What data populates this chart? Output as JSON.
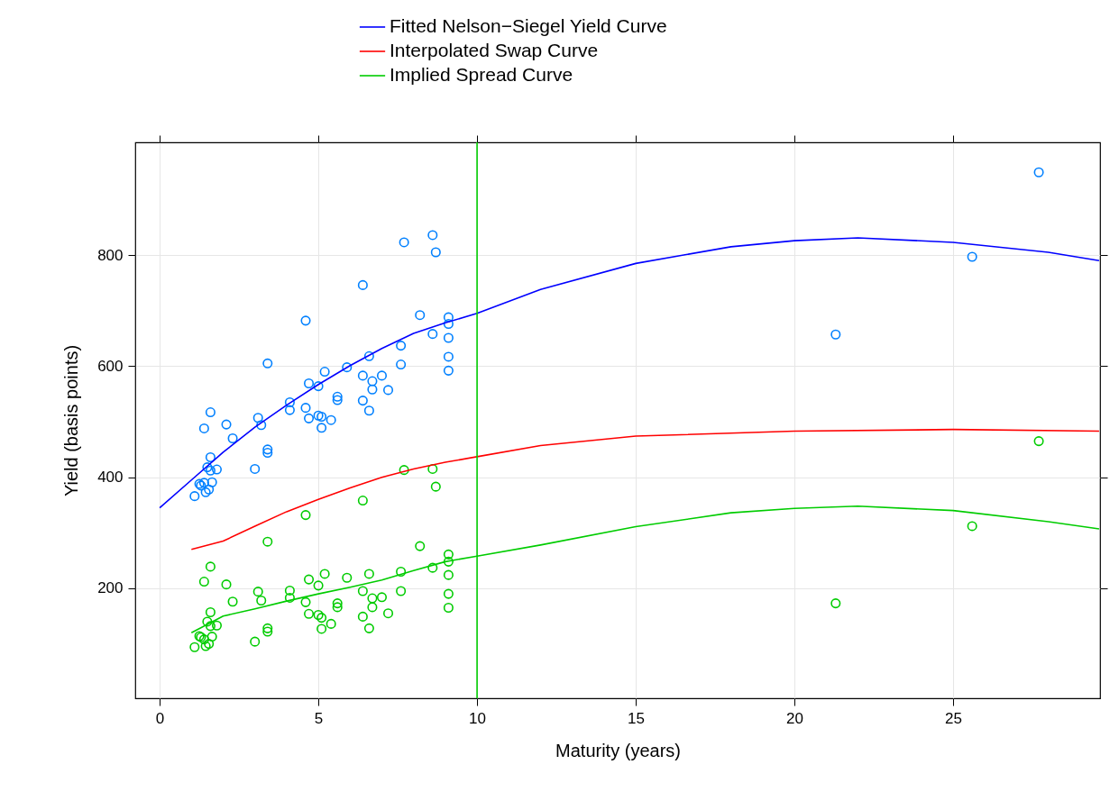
{
  "chart_data": {
    "type": "scatter",
    "xlabel": "Maturity (years)",
    "ylabel": "Yield (basis points)",
    "xlim": [
      -0.77,
      29.63
    ],
    "ylim": [
      2,
      1003
    ],
    "xticks": [
      0,
      5,
      10,
      15,
      20,
      25
    ],
    "yticks": [
      200,
      400,
      600,
      800
    ],
    "grid": true,
    "legend": "top",
    "marker": "circle",
    "ref_lines": [
      {
        "axis": "x",
        "value": 10,
        "color": "#00cc00"
      }
    ],
    "series": [
      {
        "color": "#0080ff",
        "x": [
          1.1,
          1.25,
          1.3,
          1.4,
          1.45,
          1.4,
          1.5,
          1.55,
          1.6,
          1.6,
          1.6,
          1.65,
          1.8,
          2.1,
          2.3,
          3.0,
          3.1,
          3.2,
          3.4,
          3.4,
          3.4,
          4.1,
          4.1,
          4.6,
          4.6,
          4.7,
          4.7,
          5.0,
          5.0,
          5.1,
          5.1,
          5.2,
          5.4,
          5.6,
          5.6,
          5.9,
          6.4,
          6.4,
          6.4,
          6.6,
          6.6,
          6.7,
          6.7,
          7.0,
          7.2,
          7.6,
          7.6,
          7.7,
          8.2,
          8.6,
          8.6,
          8.7,
          9.1,
          9.1,
          9.1,
          9.1,
          9.1,
          21.3,
          25.6,
          27.7
        ],
        "values": [
          366,
          388,
          385,
          390,
          373,
          488,
          418,
          378,
          517,
          436,
          412,
          391,
          414,
          495,
          470,
          415,
          507,
          494,
          605,
          450,
          444,
          535,
          521,
          682,
          525,
          569,
          506,
          564,
          511,
          509,
          489,
          590,
          503,
          545,
          539,
          598,
          746,
          583,
          538,
          618,
          520,
          573,
          558,
          583,
          557,
          637,
          603,
          823,
          692,
          836,
          658,
          805,
          688,
          676,
          651,
          617,
          592,
          657,
          797,
          949
        ]
      },
      {
        "color": "#00cc00",
        "x": [
          1.1,
          1.25,
          1.3,
          1.4,
          1.45,
          1.4,
          1.5,
          1.55,
          1.6,
          1.6,
          1.6,
          1.65,
          1.8,
          2.1,
          2.3,
          3.0,
          3.1,
          3.2,
          3.4,
          3.4,
          3.4,
          4.1,
          4.1,
          4.6,
          4.6,
          4.7,
          4.7,
          5.0,
          5.0,
          5.1,
          5.1,
          5.2,
          5.4,
          5.6,
          5.6,
          5.9,
          6.4,
          6.4,
          6.4,
          6.6,
          6.6,
          6.7,
          6.7,
          7.0,
          7.2,
          7.6,
          7.6,
          7.7,
          8.2,
          8.6,
          8.6,
          8.7,
          9.1,
          9.1,
          9.1,
          9.1,
          9.1,
          21.3,
          25.6,
          27.7
        ],
        "values": [
          94,
          114,
          112,
          108,
          96,
          212,
          140,
          100,
          239,
          157,
          132,
          113,
          133,
          207,
          176,
          104,
          194,
          178,
          284,
          128,
          122,
          196,
          183,
          332,
          175,
          216,
          154,
          205,
          152,
          147,
          127,
          226,
          136,
          173,
          166,
          219,
          358,
          195,
          149,
          226,
          128,
          182,
          166,
          184,
          155,
          230,
          195,
          413,
          276,
          415,
          237,
          383,
          261,
          248,
          224,
          190,
          165,
          173,
          312,
          465
        ]
      },
      {
        "type": "line",
        "marker": "none",
        "name": "Fitted Nelson−Siegel Yield Curve",
        "color": "#0000ff",
        "x": [
          0,
          1,
          2,
          3,
          4,
          5,
          6,
          7,
          8,
          9,
          10,
          12,
          15,
          18,
          20,
          22,
          25,
          28,
          29.6
        ],
        "values": [
          345,
          395,
          445,
          490,
          530,
          567,
          601,
          632,
          659,
          678,
          695,
          738,
          785,
          815,
          826,
          831,
          823,
          805,
          790
        ]
      },
      {
        "type": "line",
        "marker": "none",
        "name": "Interpolated Swap Curve",
        "color": "#ff0000",
        "x": [
          1,
          2,
          3,
          4,
          5,
          6,
          7,
          8,
          9,
          10,
          12,
          15,
          20,
          25,
          29.6
        ],
        "values": [
          270,
          285,
          312,
          338,
          360,
          381,
          400,
          415,
          427,
          437,
          457,
          474,
          483,
          486,
          483
        ]
      },
      {
        "type": "line",
        "marker": "none",
        "name": "Implied Spread Curve",
        "color": "#00cc00",
        "x": [
          1,
          1.5,
          2,
          3,
          4,
          5,
          6,
          7,
          8,
          9,
          10,
          12,
          15,
          18,
          20,
          22,
          25,
          28,
          29.6
        ],
        "values": [
          120,
          135,
          150,
          163,
          177,
          190,
          202,
          215,
          232,
          248,
          258,
          278,
          311,
          336,
          344,
          348,
          340,
          320,
          307
        ]
      }
    ]
  }
}
